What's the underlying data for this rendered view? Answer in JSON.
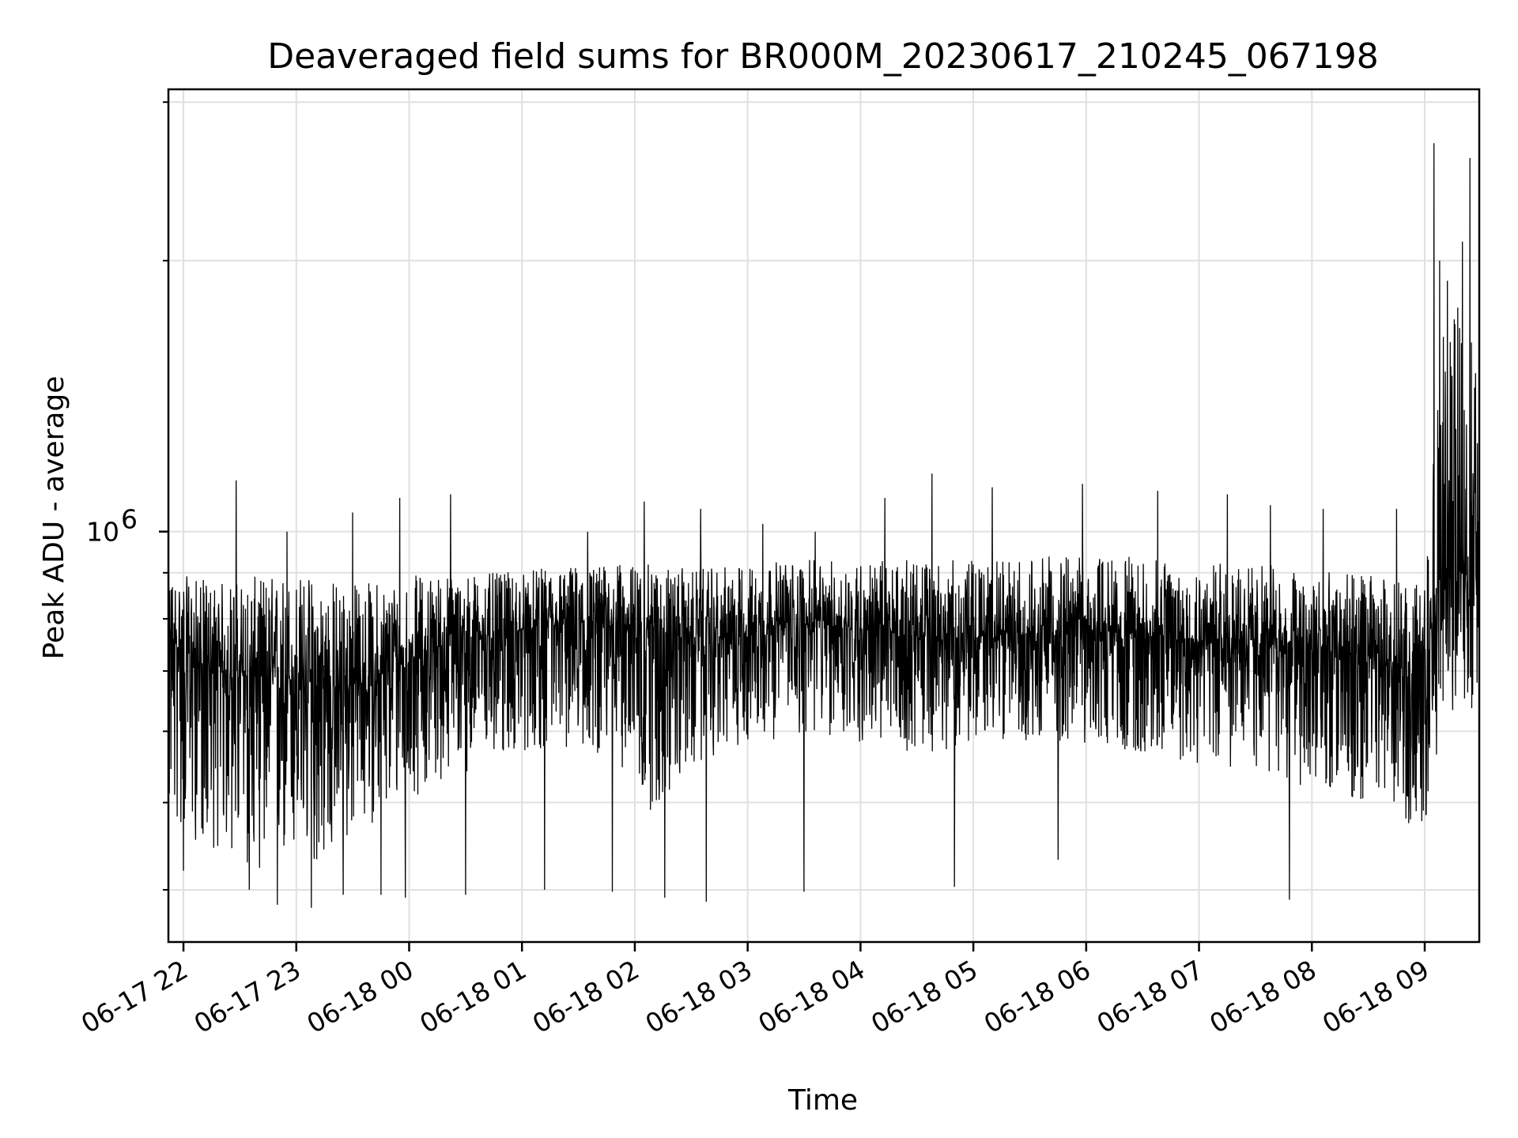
{
  "chart_data": {
    "type": "line",
    "title": "Deaveraged field sums for BR000M_20230617_210245_067198",
    "xlabel": "Time",
    "ylabel": "Peak ADU - average",
    "y_scale": "log",
    "ylim": [
      350000,
      3100000
    ],
    "xlim": [
      "2023-06-17 21:52",
      "2023-06-18 09:29"
    ],
    "grid": true,
    "line_color": "#000000",
    "x_ticks": [
      {
        "t": "2023-06-17 22:00",
        "label": "06-17 22"
      },
      {
        "t": "2023-06-17 23:00",
        "label": "06-17 23"
      },
      {
        "t": "2023-06-18 00:00",
        "label": "06-18 00"
      },
      {
        "t": "2023-06-18 01:00",
        "label": "06-18 01"
      },
      {
        "t": "2023-06-18 02:00",
        "label": "06-18 02"
      },
      {
        "t": "2023-06-18 03:00",
        "label": "06-18 03"
      },
      {
        "t": "2023-06-18 04:00",
        "label": "06-18 04"
      },
      {
        "t": "2023-06-18 05:00",
        "label": "06-18 05"
      },
      {
        "t": "2023-06-18 06:00",
        "label": "06-18 06"
      },
      {
        "t": "2023-06-18 07:00",
        "label": "06-18 07"
      },
      {
        "t": "2023-06-18 08:00",
        "label": "06-18 08"
      },
      {
        "t": "2023-06-18 09:00",
        "label": "06-18 09"
      }
    ],
    "y_major_ticks": [
      {
        "value": 1000000,
        "base": "10",
        "exp": "6"
      }
    ],
    "y_minor_ticks": [
      400000,
      500000,
      600000,
      700000,
      800000,
      900000,
      2000000,
      3000000
    ],
    "series": [
      {
        "x": [
          "2023-06-17 21:52",
          "2023-06-17 22:05",
          "2023-06-17 22:20",
          "2023-06-17 22:35",
          "2023-06-17 22:50",
          "2023-06-17 23:05",
          "2023-06-17 23:20",
          "2023-06-17 23:35",
          "2023-06-17 23:50",
          "2023-06-18 00:10",
          "2023-06-18 00:30",
          "2023-06-18 00:50",
          "2023-06-18 01:10",
          "2023-06-18 01:30",
          "2023-06-18 01:50",
          "2023-06-18 02:10",
          "2023-06-18 02:30",
          "2023-06-18 02:40",
          "2023-06-18 03:00",
          "2023-06-18 03:20",
          "2023-06-18 03:40",
          "2023-06-18 04:00",
          "2023-06-18 04:20",
          "2023-06-18 04:40",
          "2023-06-18 05:00",
          "2023-06-18 05:20",
          "2023-06-18 05:40",
          "2023-06-18 06:00",
          "2023-06-18 06:20",
          "2023-06-18 06:40",
          "2023-06-18 07:00",
          "2023-06-18 07:20",
          "2023-06-18 07:40",
          "2023-06-18 08:00",
          "2023-06-18 08:20",
          "2023-06-18 08:40",
          "2023-06-18 09:00",
          "2023-06-18 09:10",
          "2023-06-18 09:20",
          "2023-06-18 09:29"
        ],
        "y": [
          760000,
          720000,
          700000,
          690000,
          690000,
          680000,
          670000,
          680000,
          700000,
          740000,
          760000,
          770000,
          780000,
          790000,
          790000,
          780000,
          760000,
          750000,
          780000,
          790000,
          790000,
          780000,
          770000,
          760000,
          760000,
          770000,
          770000,
          780000,
          770000,
          770000,
          760000,
          760000,
          750000,
          740000,
          730000,
          720000,
          700000,
          880000,
          900000,
          880000
        ],
        "spread_low": [
          470000,
          450000,
          440000,
          420000,
          420000,
          420000,
          430000,
          470000,
          480000,
          520000,
          540000,
          560000,
          570000,
          570000,
          560000,
          480000,
          540000,
          560000,
          580000,
          590000,
          590000,
          580000,
          570000,
          570000,
          580000,
          590000,
          580000,
          580000,
          570000,
          560000,
          550000,
          540000,
          530000,
          520000,
          500000,
          480000,
          470000,
          620000,
          640000,
          630000
        ],
        "spread_high": [
          900000,
          890000,
          880000,
          890000,
          900000,
          900000,
          890000,
          880000,
          890000,
          900000,
          900000,
          900000,
          910000,
          920000,
          920000,
          920000,
          910000,
          910000,
          920000,
          930000,
          930000,
          930000,
          930000,
          930000,
          930000,
          930000,
          940000,
          940000,
          940000,
          930000,
          930000,
          920000,
          920000,
          910000,
          900000,
          890000,
          880000,
          1700000,
          1800000,
          1700000
        ],
        "spikes": [
          {
            "t": "2023-06-17 22:28",
            "y": 1140000
          },
          {
            "t": "2023-06-17 22:55",
            "y": 1000000
          },
          {
            "t": "2023-06-17 23:30",
            "y": 1050000
          },
          {
            "t": "2023-06-17 23:55",
            "y": 1090000
          },
          {
            "t": "2023-06-18 00:22",
            "y": 1100000
          },
          {
            "t": "2023-06-18 01:35",
            "y": 1000000
          },
          {
            "t": "2023-06-18 02:05",
            "y": 1080000
          },
          {
            "t": "2023-06-18 02:35",
            "y": 1060000
          },
          {
            "t": "2023-06-18 03:08",
            "y": 1020000
          },
          {
            "t": "2023-06-18 03:36",
            "y": 1000000
          },
          {
            "t": "2023-06-18 04:13",
            "y": 1090000
          },
          {
            "t": "2023-06-18 04:38",
            "y": 1160000
          },
          {
            "t": "2023-06-18 05:10",
            "y": 1120000
          },
          {
            "t": "2023-06-18 05:58",
            "y": 1130000
          },
          {
            "t": "2023-06-18 06:38",
            "y": 1110000
          },
          {
            "t": "2023-06-18 07:15",
            "y": 1100000
          },
          {
            "t": "2023-06-18 07:38",
            "y": 1070000
          },
          {
            "t": "2023-06-18 08:06",
            "y": 1060000
          },
          {
            "t": "2023-06-18 08:45",
            "y": 1060000
          },
          {
            "t": "2023-06-18 09:05",
            "y": 2700000
          },
          {
            "t": "2023-06-18 09:08",
            "y": 2000000
          },
          {
            "t": "2023-06-18 09:12",
            "y": 1900000
          },
          {
            "t": "2023-06-18 09:16",
            "y": 1700000
          },
          {
            "t": "2023-06-18 09:20",
            "y": 2100000
          },
          {
            "t": "2023-06-18 09:24",
            "y": 2600000
          },
          {
            "t": "2023-06-18 09:27",
            "y": 1500000
          }
        ],
        "dips": [
          {
            "t": "2023-06-17 22:00",
            "y": 420000
          },
          {
            "t": "2023-06-17 22:35",
            "y": 400000
          },
          {
            "t": "2023-06-17 22:50",
            "y": 385000
          },
          {
            "t": "2023-06-17 23:08",
            "y": 382000
          },
          {
            "t": "2023-06-17 23:25",
            "y": 395000
          },
          {
            "t": "2023-06-17 23:45",
            "y": 395000
          },
          {
            "t": "2023-06-17 23:58",
            "y": 392000
          },
          {
            "t": "2023-06-18 00:30",
            "y": 395000
          },
          {
            "t": "2023-06-18 01:12",
            "y": 400000
          },
          {
            "t": "2023-06-18 01:48",
            "y": 398000
          },
          {
            "t": "2023-06-18 02:16",
            "y": 392000
          },
          {
            "t": "2023-06-18 02:38",
            "y": 388000
          },
          {
            "t": "2023-06-18 03:30",
            "y": 398000
          },
          {
            "t": "2023-06-18 04:50",
            "y": 403000
          },
          {
            "t": "2023-06-18 05:45",
            "y": 432000
          },
          {
            "t": "2023-06-18 07:48",
            "y": 390000
          },
          {
            "t": "2023-06-18 08:50",
            "y": 480000
          }
        ]
      }
    ]
  }
}
